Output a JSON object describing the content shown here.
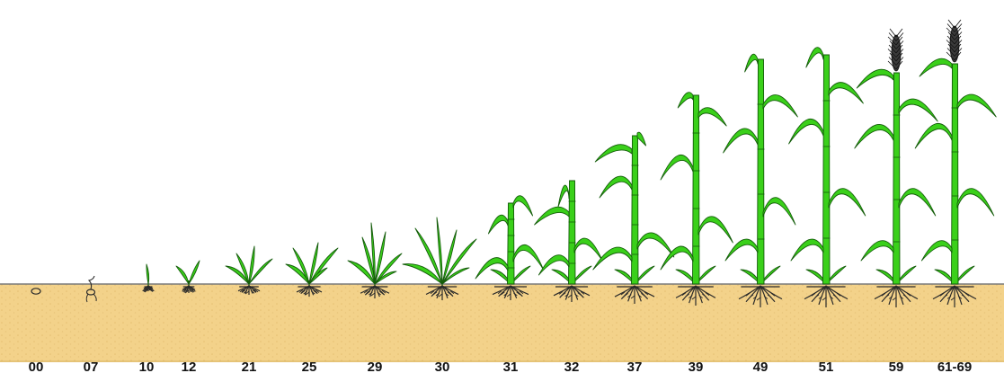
{
  "stages": [
    "00",
    "07",
    "10",
    "12",
    "21",
    "25",
    "29",
    "30",
    "31",
    "32",
    "37",
    "39",
    "49",
    "51",
    "59",
    "61-69"
  ],
  "colors": {
    "soil": "#f3d28a",
    "soil_dark": "#e8bf6a",
    "soil_line": "#6b6b6b",
    "leaf": "#3ad01a",
    "leaf_edge": "#145c0a",
    "root": "#2a2a2a",
    "head": "#3a3a3a"
  }
}
